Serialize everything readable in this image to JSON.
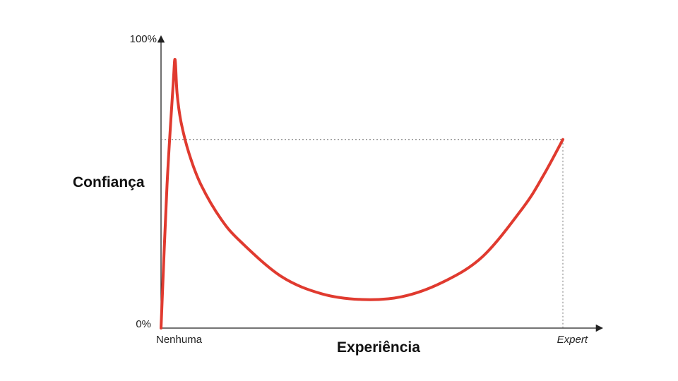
{
  "chart_data": {
    "type": "line",
    "title": "",
    "xlabel": "Experiência",
    "ylabel": "Confiança",
    "x_tick_labels": [
      "Nenhuma",
      "Expert"
    ],
    "y_tick_labels": [
      "0%",
      "100%"
    ],
    "xlim": [
      0,
      100
    ],
    "ylim": [
      0,
      100
    ],
    "grid": false,
    "series": [
      {
        "color": "#e03a2f",
        "x": [
          0,
          1.5,
          3,
          3.5,
          4,
          5,
          7,
          10,
          15,
          20,
          30,
          40,
          50,
          60,
          70,
          80,
          90,
          95,
          100
        ],
        "y": [
          0,
          50,
          85,
          94,
          82,
          72,
          61,
          50,
          38,
          30,
          18,
          12,
          10,
          11,
          16,
          25,
          42,
          53,
          66
        ]
      }
    ],
    "reference_level_y": 66,
    "colors": {
      "line": "#e03a2f",
      "axis": "#222222",
      "reference": "#777777"
    }
  }
}
